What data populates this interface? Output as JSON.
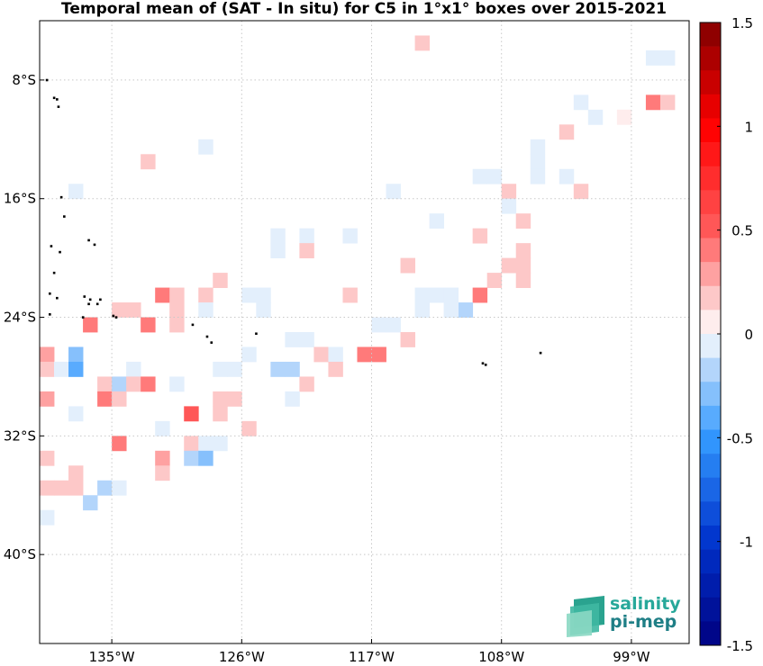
{
  "title": "Temporal mean of (SAT - In situ) for C5 in 1°x1° boxes over 2015-2021",
  "map": {
    "lon_range": [
      -140,
      -95
    ],
    "lat_range": [
      -46,
      -4
    ],
    "lon_ticks": [
      {
        "value": -135,
        "label": "135°W"
      },
      {
        "value": -126,
        "label": "126°W"
      },
      {
        "value": -117,
        "label": "117°W"
      },
      {
        "value": -108,
        "label": "108°W"
      },
      {
        "value": -99,
        "label": "99°W"
      }
    ],
    "lat_ticks": [
      {
        "value": -8,
        "label": "8°S"
      },
      {
        "value": -16,
        "label": "16°S"
      },
      {
        "value": -24,
        "label": "24°S"
      },
      {
        "value": -32,
        "label": "32°S"
      },
      {
        "value": -40,
        "label": "40°S"
      }
    ],
    "grid": true,
    "grid_style": "dotted",
    "land_color": "#000000",
    "islands": [
      [
        -139.5,
        -8.0
      ],
      [
        -139.0,
        -9.2
      ],
      [
        -138.8,
        -9.3
      ],
      [
        -138.7,
        -9.8
      ],
      [
        -138.5,
        -15.9
      ],
      [
        -138.3,
        -17.2
      ],
      [
        -139.2,
        -19.2
      ],
      [
        -138.6,
        -19.6
      ],
      [
        -136.6,
        -18.8
      ],
      [
        -136.2,
        -19.1
      ],
      [
        -139.0,
        -21.0
      ],
      [
        -139.3,
        -22.4
      ],
      [
        -138.8,
        -22.7
      ],
      [
        -136.9,
        -22.6
      ],
      [
        -136.5,
        -22.8
      ],
      [
        -135.8,
        -22.8
      ],
      [
        -136.6,
        -23.1
      ],
      [
        -136.0,
        -23.1
      ],
      [
        -139.3,
        -23.8
      ],
      [
        -137.0,
        -24.0
      ],
      [
        -134.9,
        -23.9
      ],
      [
        -134.7,
        -24.0
      ],
      [
        -129.4,
        -24.5
      ],
      [
        -125.0,
        -25.1
      ],
      [
        -128.1,
        -25.7
      ],
      [
        -128.4,
        -25.3
      ],
      [
        -109.3,
        -27.1
      ],
      [
        -109.1,
        -27.2
      ],
      [
        -105.3,
        -26.4
      ]
    ],
    "cells": [
      {
        "lon": -113.5,
        "lat": -5.5,
        "v": 0.13
      },
      {
        "lon": -97.5,
        "lat": -6.5,
        "v": -0.07
      },
      {
        "lon": -96.5,
        "lat": -6.5,
        "v": -0.07
      },
      {
        "lon": -102.5,
        "lat": -9.5,
        "v": -0.07
      },
      {
        "lon": -97.5,
        "lat": -9.5,
        "v": 0.38
      },
      {
        "lon": -96.5,
        "lat": -9.5,
        "v": 0.2
      },
      {
        "lon": -101.5,
        "lat": -10.5,
        "v": -0.07
      },
      {
        "lon": -99.5,
        "lat": -10.5,
        "v": 0.1
      },
      {
        "lon": -103.5,
        "lat": -11.5,
        "v": 0.2
      },
      {
        "lon": -105.5,
        "lat": -12.5,
        "v": -0.07
      },
      {
        "lon": -128.5,
        "lat": -12.5,
        "v": -0.1
      },
      {
        "lon": -105.5,
        "lat": -13.5,
        "v": -0.07
      },
      {
        "lon": -132.5,
        "lat": -13.5,
        "v": 0.2
      },
      {
        "lon": -105.5,
        "lat": -14.5,
        "v": -0.07
      },
      {
        "lon": -108.5,
        "lat": -14.5,
        "v": -0.07
      },
      {
        "lon": -109.5,
        "lat": -14.5,
        "v": -0.1
      },
      {
        "lon": -107.5,
        "lat": -15.5,
        "v": 0.13
      },
      {
        "lon": -115.5,
        "lat": -15.5,
        "v": -0.07
      },
      {
        "lon": -102.5,
        "lat": -15.5,
        "v": 0.2
      },
      {
        "lon": -103.5,
        "lat": -14.5,
        "v": -0.07
      },
      {
        "lon": -137.5,
        "lat": -15.5,
        "v": -0.07
      },
      {
        "lon": -107.5,
        "lat": -16.5,
        "v": -0.07
      },
      {
        "lon": -106.5,
        "lat": -17.5,
        "v": 0.13
      },
      {
        "lon": -112.5,
        "lat": -17.5,
        "v": -0.07
      },
      {
        "lon": -109.5,
        "lat": -18.5,
        "v": 0.2
      },
      {
        "lon": -118.5,
        "lat": -18.5,
        "v": -0.07
      },
      {
        "lon": -123.5,
        "lat": -18.5,
        "v": -0.07
      },
      {
        "lon": -121.5,
        "lat": -18.5,
        "v": -0.07
      },
      {
        "lon": -123.5,
        "lat": -19.5,
        "v": -0.07
      },
      {
        "lon": -106.5,
        "lat": -19.5,
        "v": 0.13
      },
      {
        "lon": -121.5,
        "lat": -19.5,
        "v": 0.2
      },
      {
        "lon": -106.5,
        "lat": -20.5,
        "v": 0.13
      },
      {
        "lon": -107.5,
        "lat": -20.5,
        "v": 0.13
      },
      {
        "lon": -114.5,
        "lat": -20.5,
        "v": 0.2
      },
      {
        "lon": -106.5,
        "lat": -21.5,
        "v": 0.13
      },
      {
        "lon": -108.5,
        "lat": -21.5,
        "v": 0.2
      },
      {
        "lon": -127.5,
        "lat": -21.5,
        "v": 0.2
      },
      {
        "lon": -109.5,
        "lat": -22.5,
        "v": 0.38
      },
      {
        "lon": -118.5,
        "lat": -22.5,
        "v": 0.13
      },
      {
        "lon": -125.5,
        "lat": -22.5,
        "v": -0.07
      },
      {
        "lon": -124.5,
        "lat": -22.5,
        "v": -0.07
      },
      {
        "lon": -113.5,
        "lat": -22.5,
        "v": -0.07
      },
      {
        "lon": -112.5,
        "lat": -22.5,
        "v": -0.07
      },
      {
        "lon": -111.5,
        "lat": -22.5,
        "v": -0.07
      },
      {
        "lon": -131.5,
        "lat": -22.5,
        "v": 0.38
      },
      {
        "lon": -130.5,
        "lat": -22.5,
        "v": 0.13
      },
      {
        "lon": -128.5,
        "lat": -22.5,
        "v": 0.2
      },
      {
        "lon": -113.5,
        "lat": -23.5,
        "v": -0.07
      },
      {
        "lon": -110.5,
        "lat": -23.5,
        "v": -0.23
      },
      {
        "lon": -111.5,
        "lat": -23.5,
        "v": -0.07
      },
      {
        "lon": -124.5,
        "lat": -23.5,
        "v": -0.07
      },
      {
        "lon": -128.5,
        "lat": -23.5,
        "v": -0.07
      },
      {
        "lon": -134.5,
        "lat": -23.5,
        "v": 0.2
      },
      {
        "lon": -133.5,
        "lat": -23.5,
        "v": 0.13
      },
      {
        "lon": -130.5,
        "lat": -23.5,
        "v": 0.13
      },
      {
        "lon": -136.5,
        "lat": -24.5,
        "v": 0.38
      },
      {
        "lon": -132.5,
        "lat": -24.5,
        "v": 0.38
      },
      {
        "lon": -130.5,
        "lat": -24.5,
        "v": 0.13
      },
      {
        "lon": -116.5,
        "lat": -24.5,
        "v": -0.07
      },
      {
        "lon": -115.5,
        "lat": -24.5,
        "v": -0.07
      },
      {
        "lon": -114.5,
        "lat": -25.5,
        "v": 0.2
      },
      {
        "lon": -122.5,
        "lat": -25.5,
        "v": -0.1
      },
      {
        "lon": -121.5,
        "lat": -25.5,
        "v": -0.1
      },
      {
        "lon": -139.5,
        "lat": -26.5,
        "v": 0.3
      },
      {
        "lon": -137.5,
        "lat": -26.5,
        "v": -0.3
      },
      {
        "lon": -125.5,
        "lat": -26.5,
        "v": -0.07
      },
      {
        "lon": -120.5,
        "lat": -26.5,
        "v": 0.2
      },
      {
        "lon": -119.5,
        "lat": -26.5,
        "v": -0.07
      },
      {
        "lon": -117.5,
        "lat": -26.5,
        "v": 0.38
      },
      {
        "lon": -116.5,
        "lat": -26.5,
        "v": 0.38
      },
      {
        "lon": -139.5,
        "lat": -27.5,
        "v": 0.2
      },
      {
        "lon": -138.5,
        "lat": -27.5,
        "v": -0.07
      },
      {
        "lon": -137.5,
        "lat": -27.5,
        "v": -0.38
      },
      {
        "lon": -133.5,
        "lat": -27.5,
        "v": -0.07
      },
      {
        "lon": -127.5,
        "lat": -27.5,
        "v": -0.07
      },
      {
        "lon": -126.5,
        "lat": -27.5,
        "v": -0.07
      },
      {
        "lon": -123.5,
        "lat": -27.5,
        "v": -0.23
      },
      {
        "lon": -122.5,
        "lat": -27.5,
        "v": -0.23
      },
      {
        "lon": -119.5,
        "lat": -27.5,
        "v": 0.2
      },
      {
        "lon": -135.5,
        "lat": -28.5,
        "v": 0.2
      },
      {
        "lon": -134.5,
        "lat": -28.5,
        "v": -0.23
      },
      {
        "lon": -133.5,
        "lat": -28.5,
        "v": 0.2
      },
      {
        "lon": -132.5,
        "lat": -28.5,
        "v": 0.45
      },
      {
        "lon": -130.5,
        "lat": -28.5,
        "v": -0.07
      },
      {
        "lon": -121.5,
        "lat": -28.5,
        "v": 0.2
      },
      {
        "lon": -139.5,
        "lat": -29.5,
        "v": 0.3
      },
      {
        "lon": -135.5,
        "lat": -29.5,
        "v": 0.45
      },
      {
        "lon": -134.5,
        "lat": -29.5,
        "v": 0.2
      },
      {
        "lon": -126.5,
        "lat": -29.5,
        "v": 0.2
      },
      {
        "lon": -122.5,
        "lat": -29.5,
        "v": -0.07
      },
      {
        "lon": -127.5,
        "lat": -29.5,
        "v": 0.13
      },
      {
        "lon": -137.5,
        "lat": -30.5,
        "v": -0.1
      },
      {
        "lon": -129.5,
        "lat": -30.5,
        "v": 0.55
      },
      {
        "lon": -127.5,
        "lat": -30.5,
        "v": 0.13
      },
      {
        "lon": -125.5,
        "lat": -31.5,
        "v": 0.2
      },
      {
        "lon": -131.5,
        "lat": -31.5,
        "v": -0.07
      },
      {
        "lon": -134.5,
        "lat": -32.5,
        "v": 0.45
      },
      {
        "lon": -129.5,
        "lat": -32.5,
        "v": 0.2
      },
      {
        "lon": -128.5,
        "lat": -32.5,
        "v": -0.07
      },
      {
        "lon": -127.5,
        "lat": -32.5,
        "v": -0.07
      },
      {
        "lon": -139.5,
        "lat": -33.5,
        "v": 0.13
      },
      {
        "lon": -131.5,
        "lat": -33.5,
        "v": 0.3
      },
      {
        "lon": -129.5,
        "lat": -33.5,
        "v": -0.23
      },
      {
        "lon": -128.5,
        "lat": -33.5,
        "v": -0.3
      },
      {
        "lon": -131.5,
        "lat": -34.5,
        "v": 0.13
      },
      {
        "lon": -137.5,
        "lat": -34.5,
        "v": 0.13
      },
      {
        "lon": -139.5,
        "lat": -35.5,
        "v": 0.13
      },
      {
        "lon": -138.5,
        "lat": -35.5,
        "v": 0.13
      },
      {
        "lon": -137.5,
        "lat": -35.5,
        "v": 0.13
      },
      {
        "lon": -135.5,
        "lat": -35.5,
        "v": -0.2
      },
      {
        "lon": -134.5,
        "lat": -35.5,
        "v": -0.07
      },
      {
        "lon": -136.5,
        "lat": -36.5,
        "v": -0.2
      },
      {
        "lon": -139.5,
        "lat": -37.5,
        "v": -0.1
      }
    ]
  },
  "colorbar": {
    "vmin": -1.5,
    "vmax": 1.5,
    "ticks": [
      {
        "value": 1.5,
        "label": "1.5"
      },
      {
        "value": 1,
        "label": "1"
      },
      {
        "value": 0.5,
        "label": "0.5"
      },
      {
        "value": 0,
        "label": "0"
      },
      {
        "value": -0.5,
        "label": "-0.5"
      },
      {
        "value": -1,
        "label": "-1"
      },
      {
        "value": -1.5,
        "label": "-1.5"
      }
    ],
    "colormap_low": "#000080",
    "colormap_mid": "#ffffff",
    "colormap_high": "#800000",
    "n_levels": 26
  },
  "logo": {
    "line1": "salinity",
    "line2": "pi-mep",
    "color1": "#27a89a",
    "color2": "#1f7f86"
  }
}
